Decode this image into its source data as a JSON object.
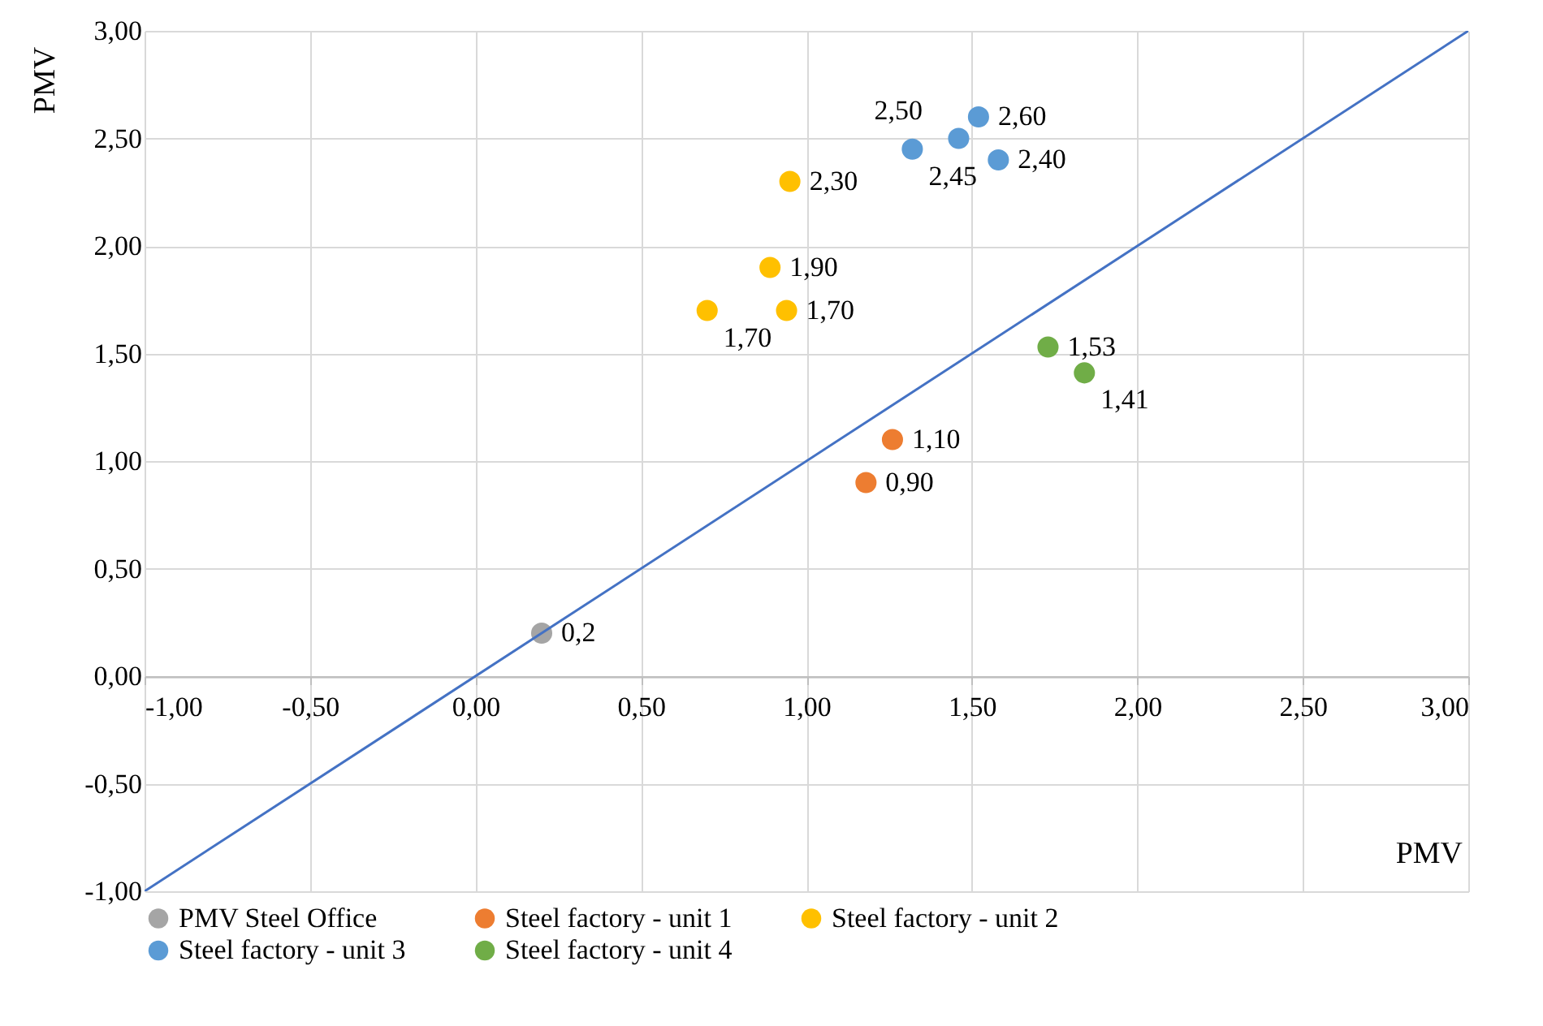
{
  "chart_data": {
    "type": "scatter",
    "xlabel": "PMV",
    "ylabel": "PMV",
    "xlim": [
      -1,
      3
    ],
    "ylim": [
      -1,
      3
    ],
    "xticks": [
      {
        "value": -1,
        "label": "-1,00"
      },
      {
        "value": -0.5,
        "label": "-0,50"
      },
      {
        "value": 0,
        "label": "0,00"
      },
      {
        "value": 0.5,
        "label": "0,50"
      },
      {
        "value": 1,
        "label": "1,00"
      },
      {
        "value": 1.5,
        "label": "1,50"
      },
      {
        "value": 2,
        "label": "2,00"
      },
      {
        "value": 2.5,
        "label": "2,50"
      },
      {
        "value": 3,
        "label": "3,00"
      }
    ],
    "yticks": [
      {
        "value": -1,
        "label": "-1,00"
      },
      {
        "value": -0.5,
        "label": "-0,50"
      },
      {
        "value": 0,
        "label": "0,00"
      },
      {
        "value": 0.5,
        "label": "0,50"
      },
      {
        "value": 1,
        "label": "1,00"
      },
      {
        "value": 1.5,
        "label": "1,50"
      },
      {
        "value": 2,
        "label": "2,00"
      },
      {
        "value": 2.5,
        "label": "2,50"
      },
      {
        "value": 3,
        "label": "3,00"
      }
    ],
    "grid": true,
    "legend": "bottom",
    "marker": "circle",
    "series": [
      {
        "name": "PMV Steel Office",
        "color": "#a5a5a5",
        "x": [
          0.2
        ],
        "values": [
          0.2
        ],
        "value_labels": [
          "0,2"
        ]
      },
      {
        "name": "Steel factory - unit 1",
        "color": "#ed7d31",
        "x": [
          1.18,
          1.26
        ],
        "values": [
          0.9,
          1.1
        ],
        "value_labels": [
          "0,90",
          "1,10"
        ]
      },
      {
        "name": "Steel factory - unit 2",
        "color": "#ffc000",
        "x": [
          0.7,
          0.89,
          0.94,
          0.95
        ],
        "values": [
          1.7,
          1.9,
          1.7,
          2.3
        ],
        "value_labels": [
          "1,70",
          "1,90",
          "1,70",
          "2,30"
        ]
      },
      {
        "name": "Steel factory - unit 3",
        "color": "#5b9bd5",
        "x": [
          1.32,
          1.46,
          1.52,
          1.58
        ],
        "values": [
          2.45,
          2.5,
          2.6,
          2.4
        ],
        "value_labels": [
          "2,45",
          "2,50",
          "2,60",
          "2,40"
        ]
      },
      {
        "name": "Steel factory - unit 4",
        "color": "#70ad47",
        "x": [
          1.73,
          1.84
        ],
        "values": [
          1.53,
          1.41
        ],
        "value_labels": [
          "1,53",
          "1,41"
        ]
      },
      {
        "type": "line",
        "color": "#4472c4",
        "marker": "none",
        "x": [
          -1,
          3
        ],
        "values": [
          -1,
          3
        ]
      }
    ]
  }
}
